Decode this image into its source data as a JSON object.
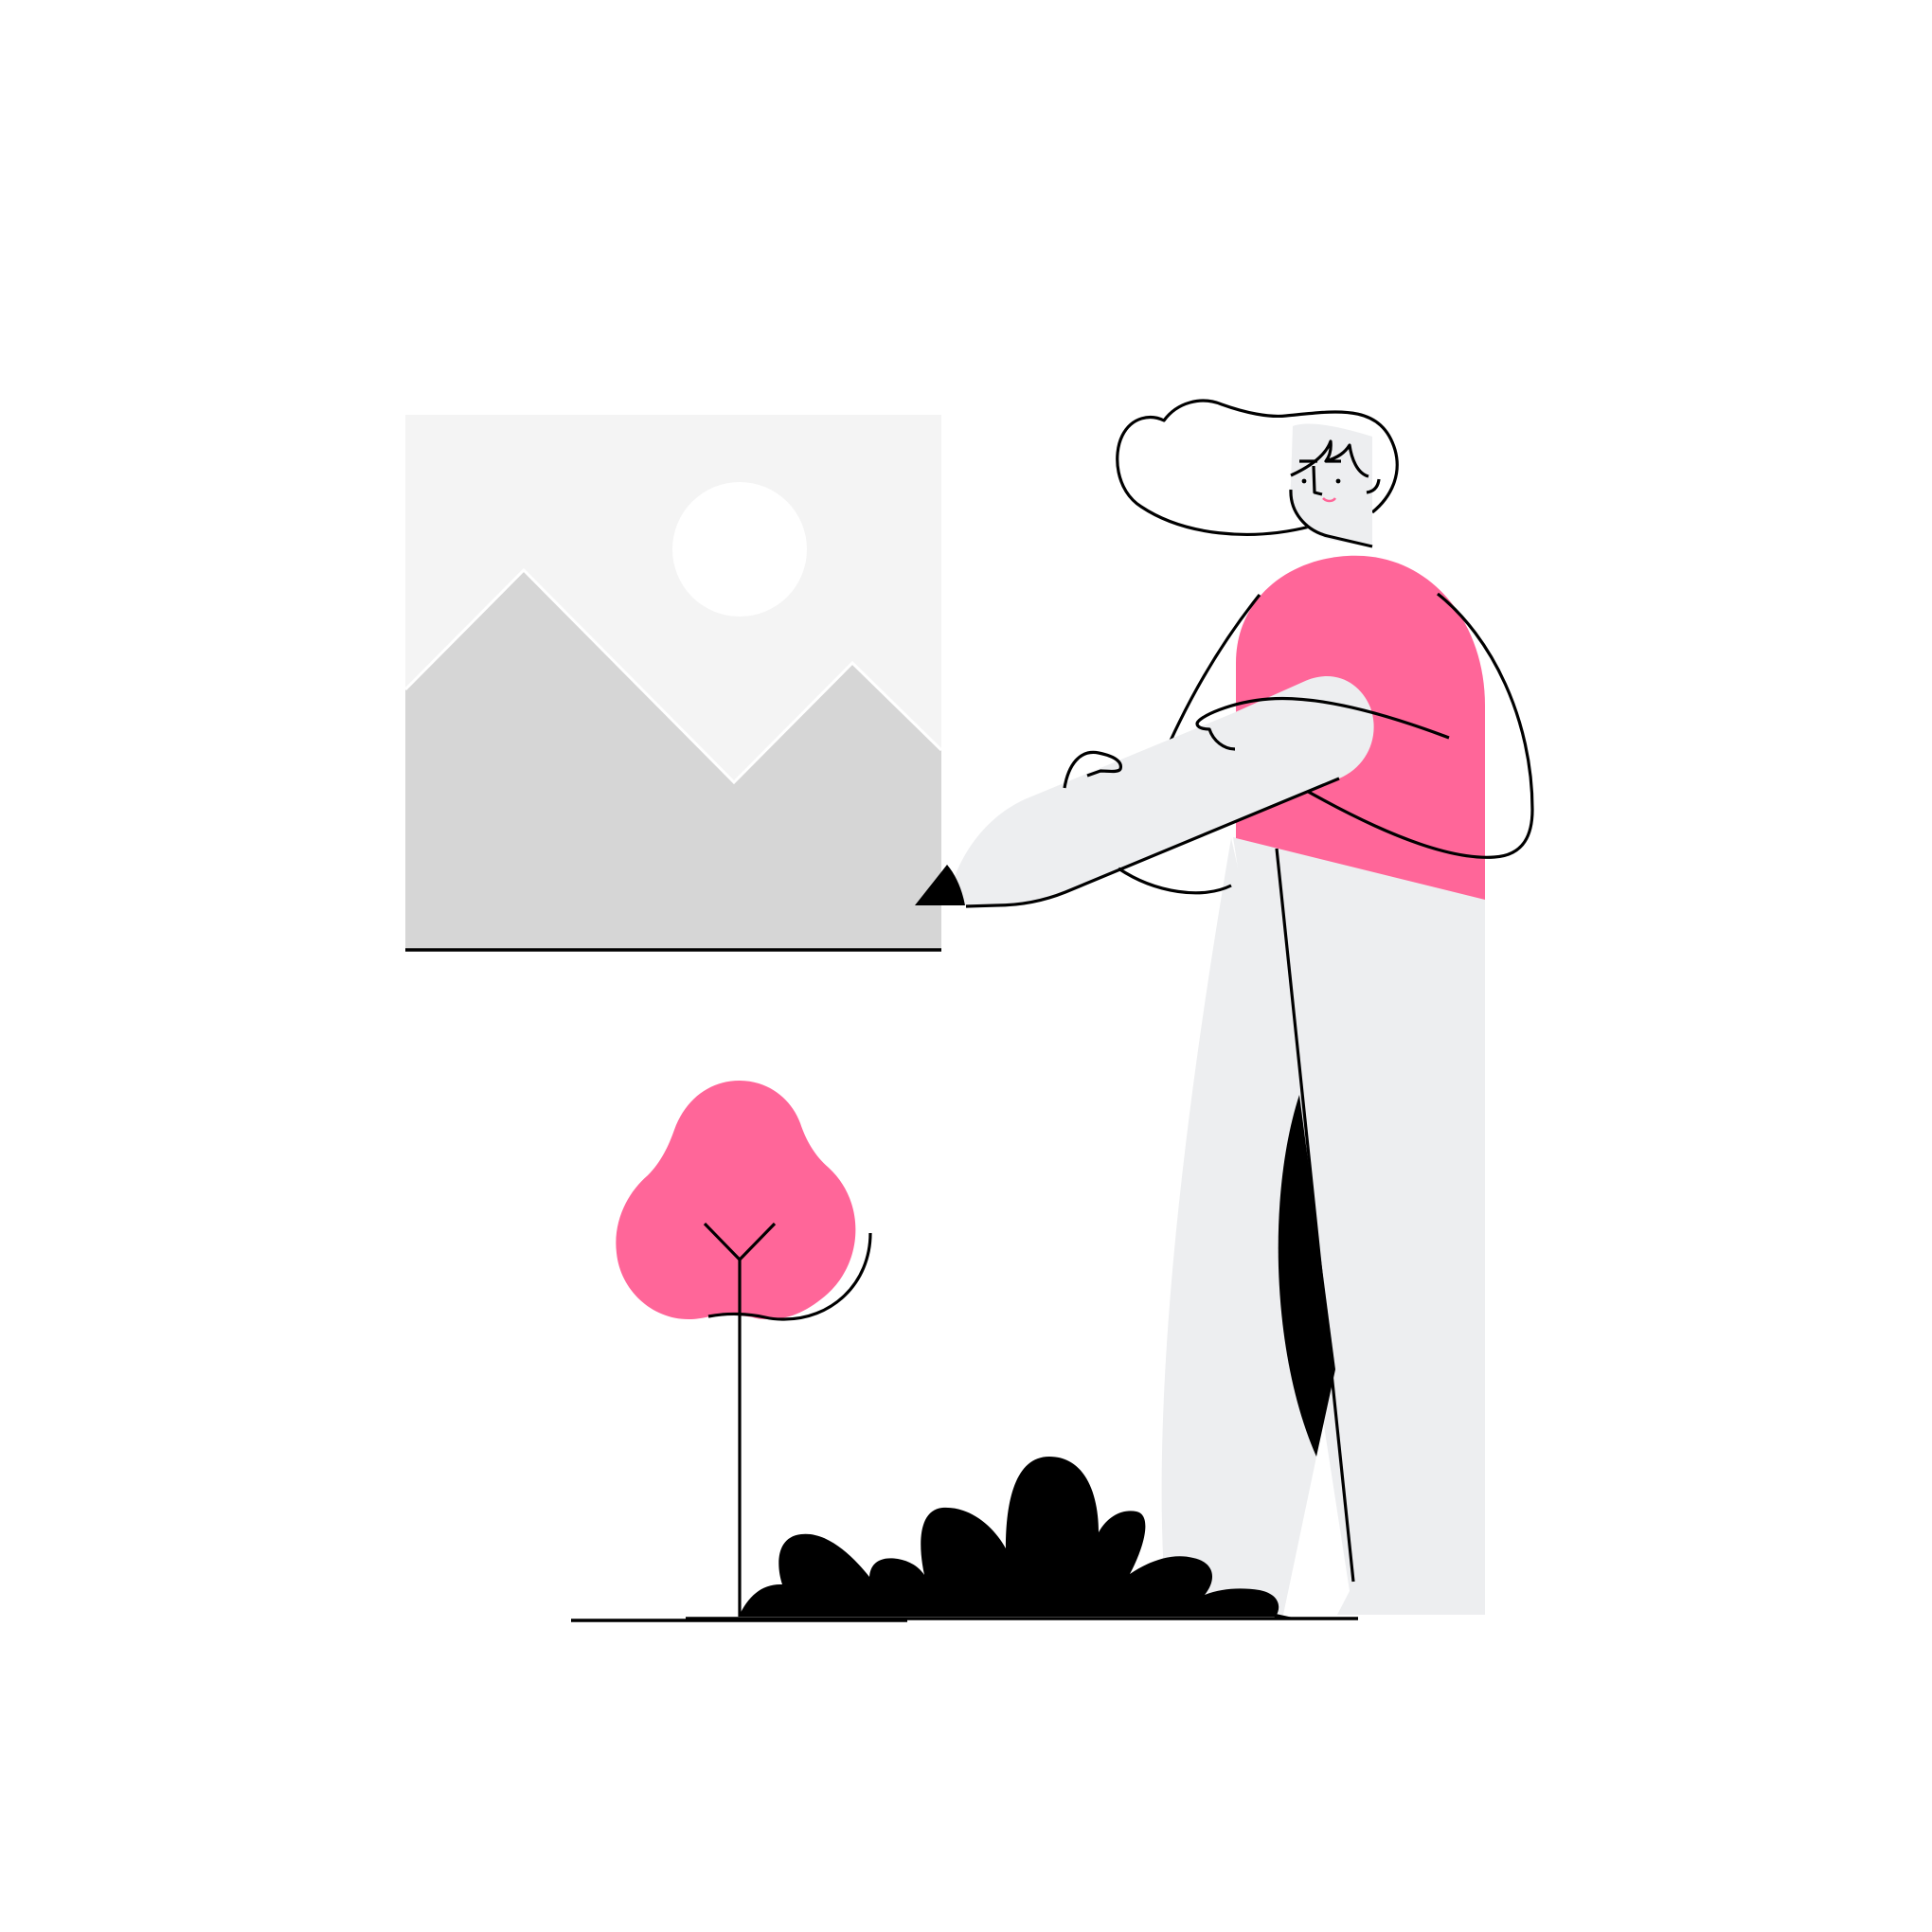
{
  "illustration": {
    "background_color": "#ffffff",
    "colors": {
      "accent": "#ff6699",
      "skin": "#edeef0",
      "frame_bg": "#f4f4f4",
      "mountain": "#d6d6d6",
      "sun": "#ffffff",
      "ink": "#000000"
    },
    "icons": [
      "image-placeholder-icon",
      "tree-icon",
      "bush-icon",
      "person-figure"
    ]
  }
}
